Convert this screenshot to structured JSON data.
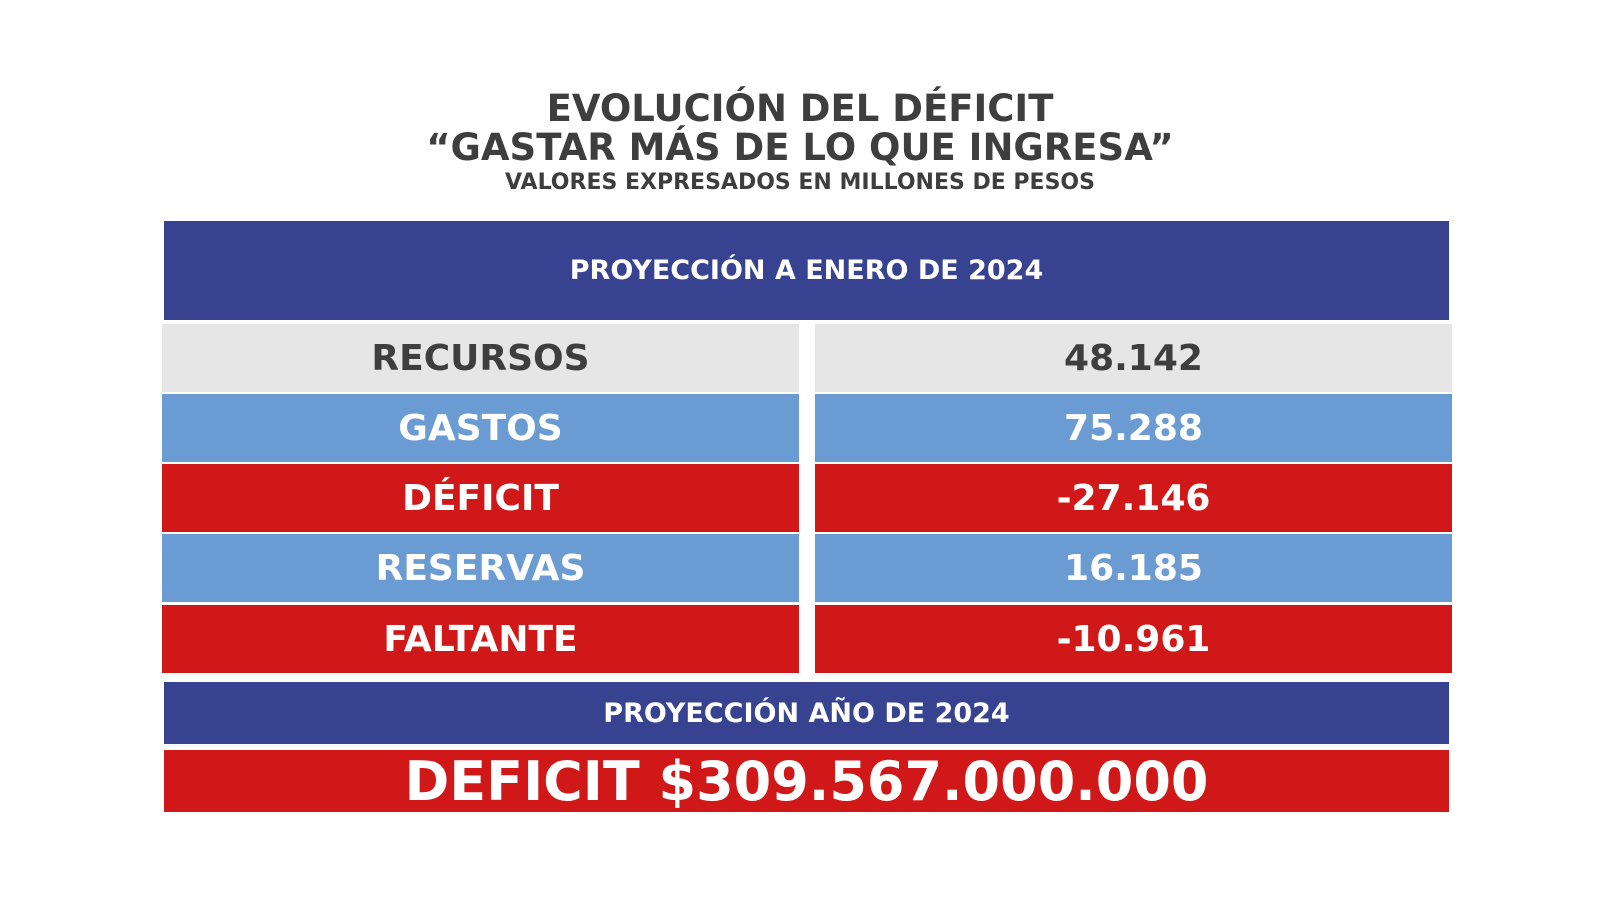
{
  "header": {
    "title_line1": "EVOLUCIÓN DEL DÉFICIT",
    "title_line2": "“GASTAR MÁS DE LO QUE INGRESA”",
    "subtitle": "VALORES EXPRESADOS EN MILLONES DE PESOS"
  },
  "table": {
    "section_header": "PROYECCIÓN A ENERO DE 2024",
    "rows": [
      {
        "label": "RECURSOS",
        "value": "48.142",
        "bg": "#e6e6e6",
        "fg": "#3e3e3e"
      },
      {
        "label": "GASTOS",
        "value": "75.288",
        "bg": "#6a9bd2",
        "fg": "#ffffff"
      },
      {
        "label": "DÉFICIT",
        "value": "-27.146",
        "bg": "#d01818",
        "fg": "#ffffff"
      },
      {
        "label": "RESERVAS",
        "value": "16.185",
        "bg": "#6a9bd2",
        "fg": "#ffffff"
      },
      {
        "label": "FALTANTE",
        "value": "-10.961",
        "bg": "#d01818",
        "fg": "#ffffff"
      }
    ],
    "year_header": "PROYECCIÓN AÑO DE 2024",
    "year_total": "DEFICIT $309.567.000.000"
  },
  "chart_data": {
    "type": "table",
    "title": "EVOLUCIÓN DEL DÉFICIT “GASTAR MÁS DE LO QUE INGRESA”",
    "subtitle": "VALORES EXPRESADOS EN MILLONES DE PESOS",
    "categories": [
      "RECURSOS",
      "GASTOS",
      "DÉFICIT",
      "RESERVAS",
      "FALTANTE"
    ],
    "values": [
      48142,
      75288,
      -27146,
      16185,
      -10961
    ]
  },
  "colors": {
    "navy": "#374391",
    "light_blue": "#6a9bd2",
    "red": "#d01818",
    "light_gray": "#e6e6e6",
    "dark_text": "#3e3e3e"
  }
}
